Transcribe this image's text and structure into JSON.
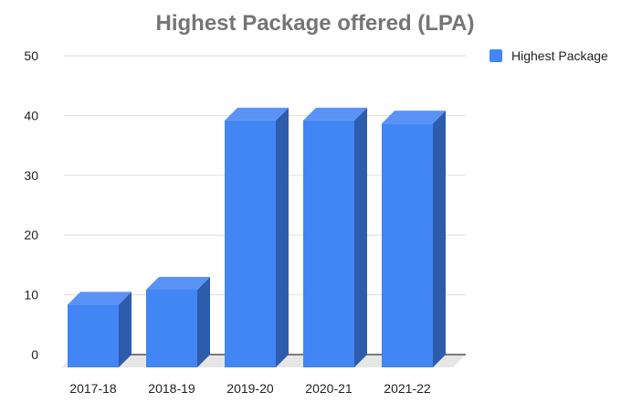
{
  "chart_data": {
    "type": "bar",
    "title": "Highest Package offered (LPA)",
    "categories": [
      "2017-18",
      "2018-19",
      "2019-20",
      "2020-21",
      "2021-22"
    ],
    "series": [
      {
        "name": "Highest Package",
        "values": [
          10.5,
          13,
          41.3,
          41.3,
          40.8
        ],
        "color": "#4285f4"
      }
    ],
    "ylim": [
      0,
      50
    ],
    "yticks": [
      "0",
      "10",
      "20",
      "30",
      "40",
      "50"
    ],
    "grid": true,
    "legend_position": "right",
    "style": "3d",
    "colors": {
      "bar_front": "#4285f4",
      "bar_side": "#2d5cad",
      "bar_top": "#5a93f5",
      "floor": "#e6e6e6",
      "gridline": "#dddddd",
      "axis": "#333333",
      "title": "#757575"
    }
  }
}
